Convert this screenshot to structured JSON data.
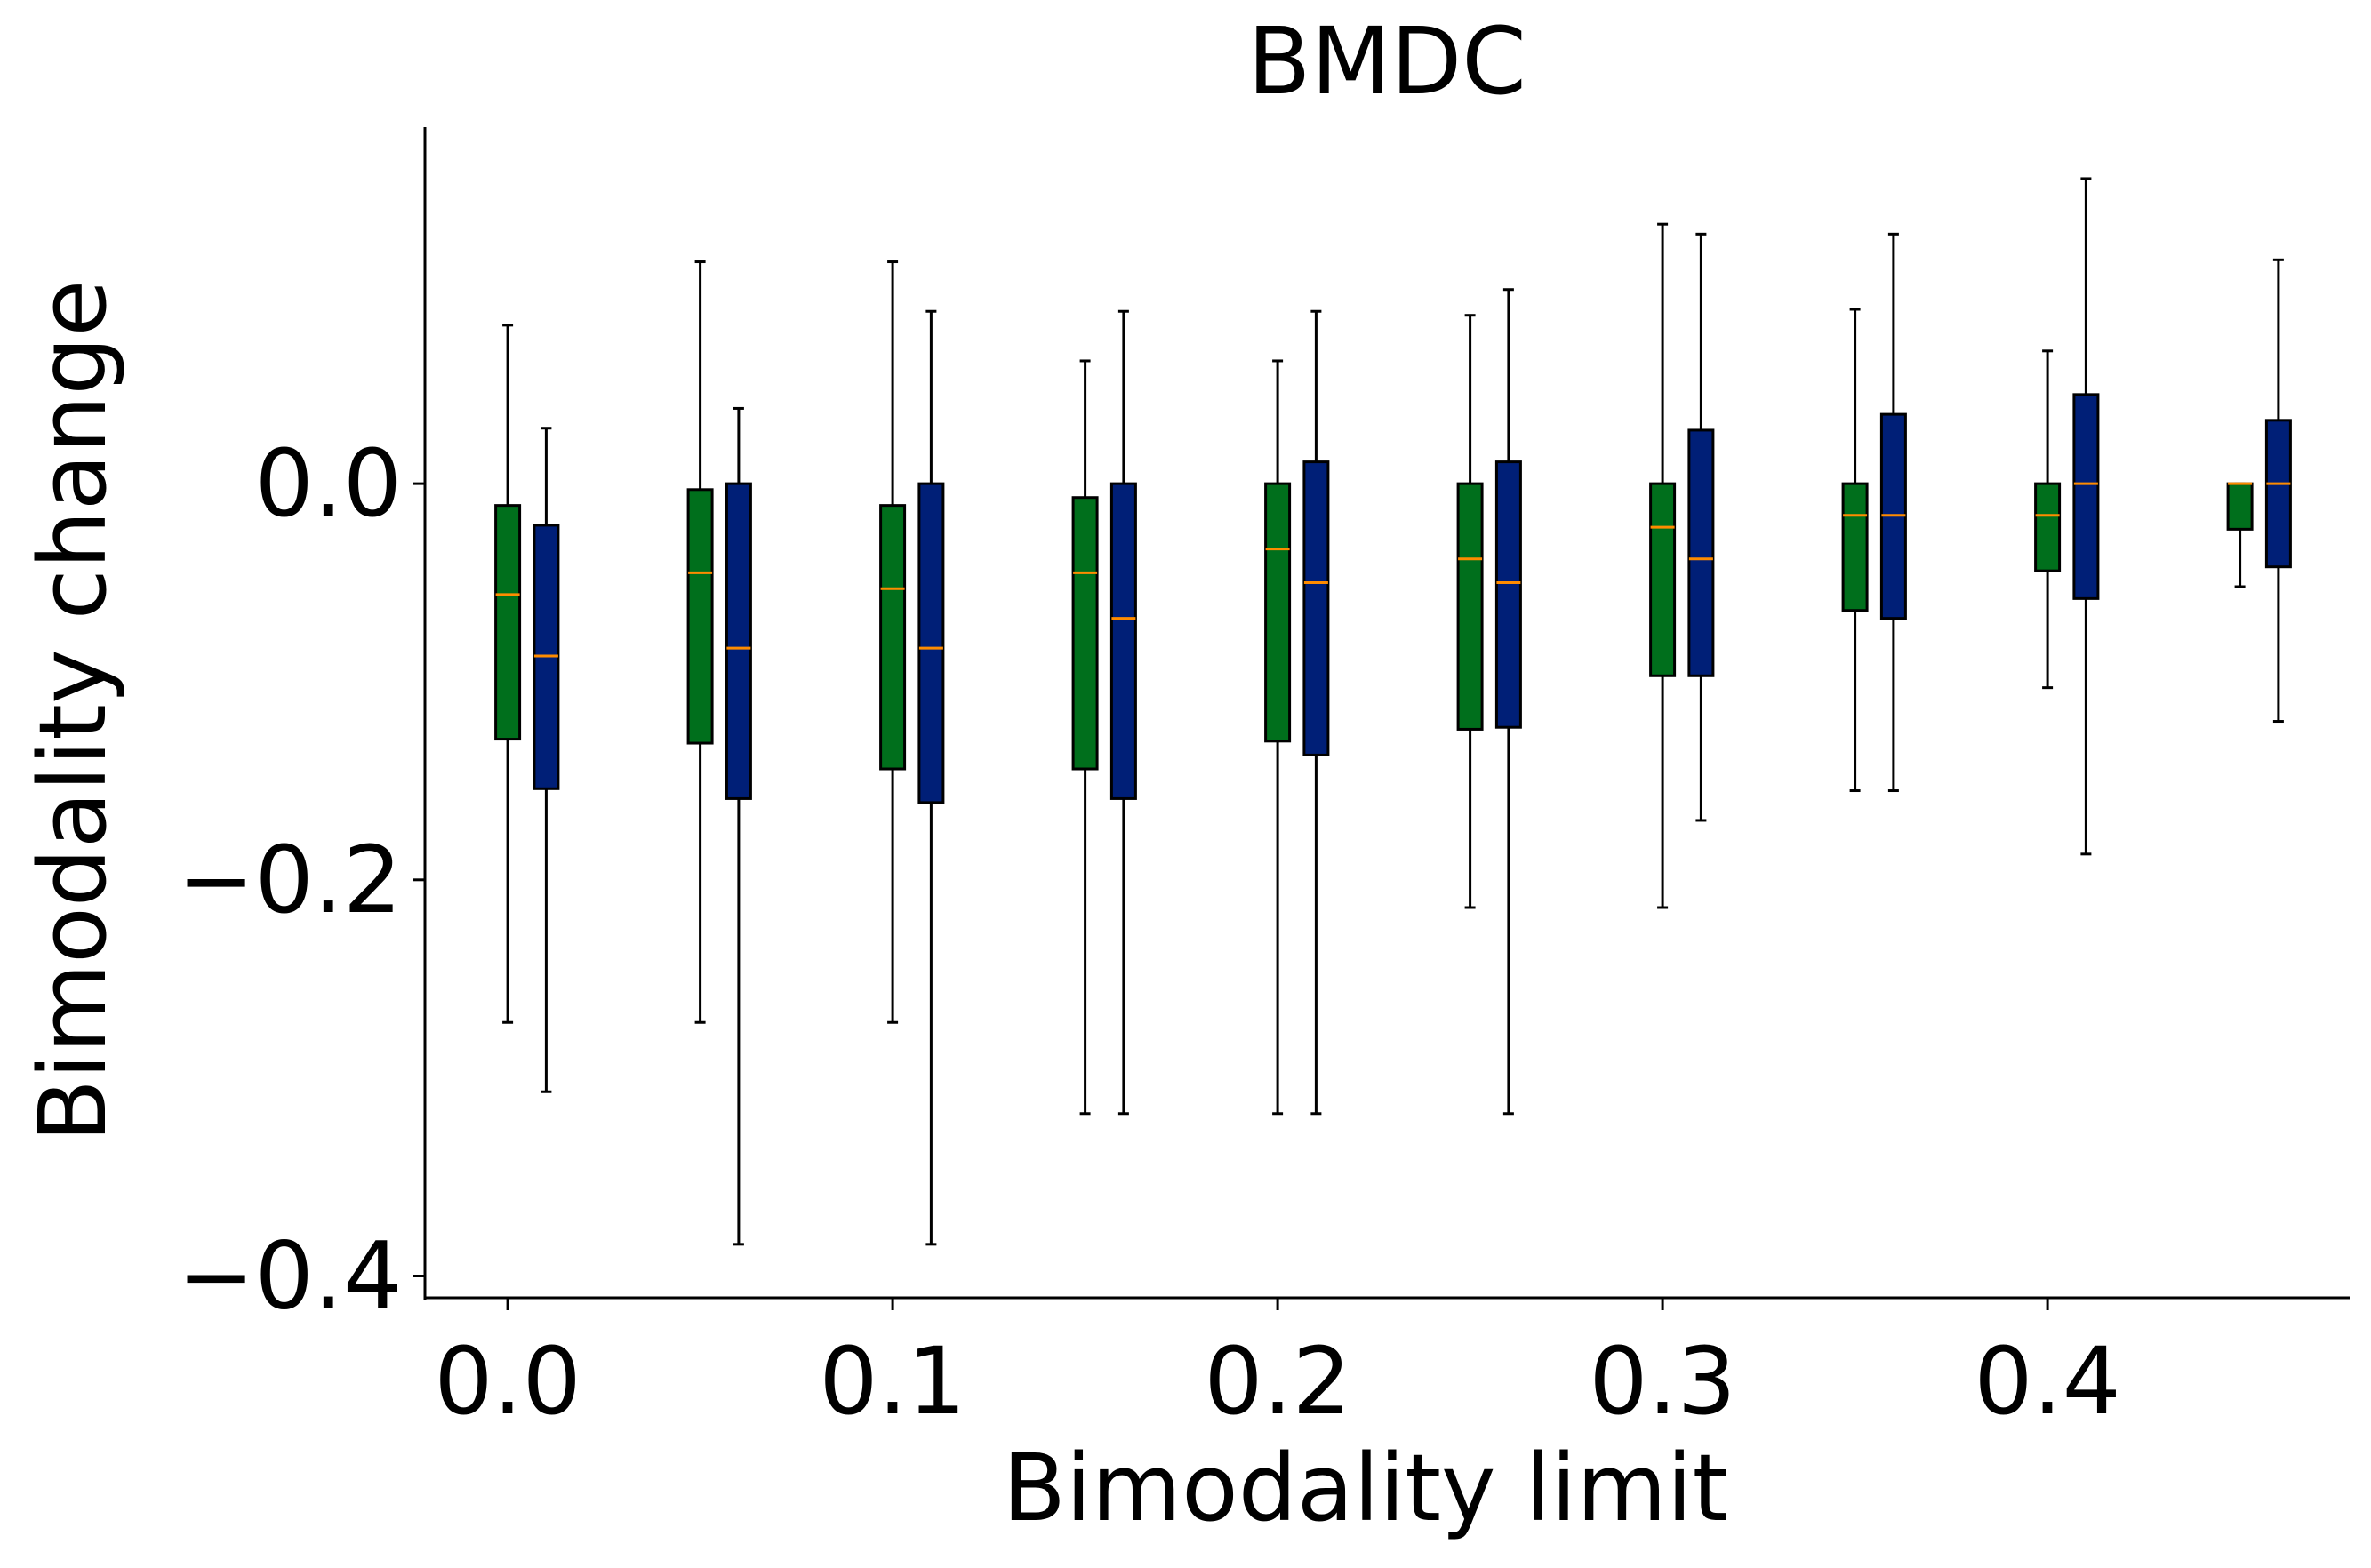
{
  "chart_data": {
    "type": "boxplot",
    "title": "BMDC",
    "xlabel": "Bimodality limit",
    "ylabel": "Bimodality change",
    "xlim": [
      -0.0215,
      0.4785
    ],
    "ylim": [
      -0.411,
      0.18
    ],
    "xticks": [
      {
        "value": 0.0,
        "label": "0.0"
      },
      {
        "value": 0.1,
        "label": "0.1"
      },
      {
        "value": 0.2,
        "label": "0.2"
      },
      {
        "value": 0.3,
        "label": "0.3"
      },
      {
        "value": 0.4,
        "label": "0.4"
      }
    ],
    "yticks": [
      {
        "value": 0.0,
        "label": "0.0"
      },
      {
        "value": -0.2,
        "label": "−0.2"
      },
      {
        "value": -0.4,
        "label": "−0.4"
      }
    ],
    "grid": false,
    "legend": "none",
    "colors": {
      "series_a": "#006f1c",
      "series_b": "#001f77",
      "median": "#ff8c00",
      "whisker": "#000000"
    },
    "series": [
      {
        "color": "#006f1c",
        "boxes": [
          {
            "x": 0.0,
            "whislo": -0.272,
            "q1": -0.129,
            "median": -0.056,
            "q3": -0.011,
            "whishi": 0.08
          },
          {
            "x": 0.05,
            "whislo": -0.272,
            "q1": -0.131,
            "median": -0.045,
            "q3": -0.003,
            "whishi": 0.112
          },
          {
            "x": 0.1,
            "whislo": -0.272,
            "q1": -0.144,
            "median": -0.053,
            "q3": -0.011,
            "whishi": 0.112
          },
          {
            "x": 0.15,
            "whislo": -0.318,
            "q1": -0.144,
            "median": -0.045,
            "q3": -0.007,
            "whishi": 0.062
          },
          {
            "x": 0.2,
            "whislo": -0.318,
            "q1": -0.13,
            "median": -0.033,
            "q3": 0.0,
            "whishi": 0.062
          },
          {
            "x": 0.25,
            "whislo": -0.214,
            "q1": -0.124,
            "median": -0.038,
            "q3": 0.0,
            "whishi": 0.085
          },
          {
            "x": 0.3,
            "whislo": -0.214,
            "q1": -0.097,
            "median": -0.022,
            "q3": 0.0,
            "whishi": 0.131
          },
          {
            "x": 0.35,
            "whislo": -0.155,
            "q1": -0.064,
            "median": -0.016,
            "q3": 0.0,
            "whishi": 0.088
          },
          {
            "x": 0.4,
            "whislo": -0.103,
            "q1": -0.044,
            "median": -0.016,
            "q3": 0.0,
            "whishi": 0.067
          },
          {
            "x": 0.45,
            "whislo": -0.052,
            "q1": -0.023,
            "median": 0.0,
            "q3": 0.0,
            "whishi": 0.0
          }
        ]
      },
      {
        "color": "#001f77",
        "boxes": [
          {
            "x": 0.01,
            "whislo": -0.307,
            "q1": -0.154,
            "median": -0.087,
            "q3": -0.021,
            "whishi": 0.028
          },
          {
            "x": 0.06,
            "whislo": -0.384,
            "q1": -0.159,
            "median": -0.083,
            "q3": 0.0,
            "whishi": 0.038
          },
          {
            "x": 0.11,
            "whislo": -0.384,
            "q1": -0.161,
            "median": -0.083,
            "q3": 0.0,
            "whishi": 0.087
          },
          {
            "x": 0.16,
            "whislo": -0.318,
            "q1": -0.159,
            "median": -0.068,
            "q3": 0.0,
            "whishi": 0.087
          },
          {
            "x": 0.21,
            "whislo": -0.318,
            "q1": -0.137,
            "median": -0.05,
            "q3": 0.011,
            "whishi": 0.087
          },
          {
            "x": 0.26,
            "whislo": -0.318,
            "q1": -0.123,
            "median": -0.05,
            "q3": 0.011,
            "whishi": 0.098
          },
          {
            "x": 0.31,
            "whislo": -0.17,
            "q1": -0.097,
            "median": -0.038,
            "q3": 0.027,
            "whishi": 0.126
          },
          {
            "x": 0.36,
            "whislo": -0.155,
            "q1": -0.068,
            "median": -0.016,
            "q3": 0.035,
            "whishi": 0.126
          },
          {
            "x": 0.41,
            "whislo": -0.187,
            "q1": -0.058,
            "median": 0.0,
            "q3": 0.045,
            "whishi": 0.154
          },
          {
            "x": 0.46,
            "whislo": -0.12,
            "q1": -0.042,
            "median": 0.0,
            "q3": 0.032,
            "whishi": 0.113
          }
        ]
      }
    ]
  }
}
